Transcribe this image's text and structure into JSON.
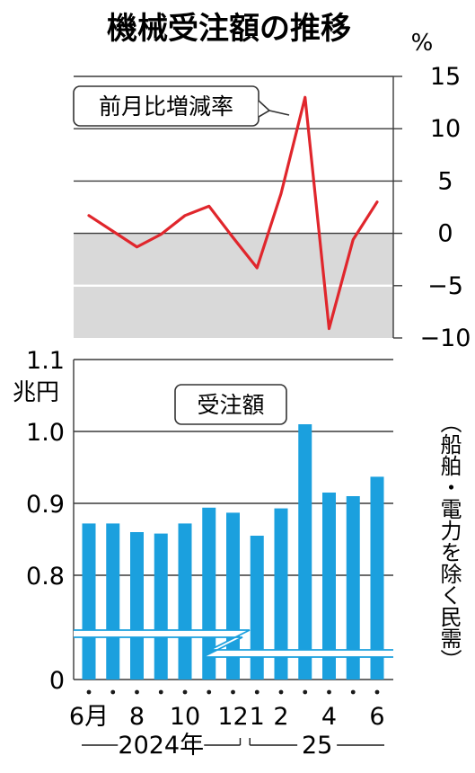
{
  "title": "機械受注額の推移",
  "chart_data": [
    {
      "type": "line",
      "label": "前月比増減率",
      "yunit": "%",
      "ylim": [
        -10,
        15
      ],
      "yticks": [
        15,
        10,
        5,
        0,
        -5,
        -10
      ],
      "ytick_labels": [
        "15",
        "10",
        "5",
        "0",
        "−5",
        "−10"
      ],
      "negative_region_shaded": true,
      "line_color": "#e0262c",
      "shade_color": "#d9d9d9",
      "x": [
        "2024-06",
        "2024-07",
        "2024-08",
        "2024-09",
        "2024-10",
        "2024-11",
        "2024-12",
        "2025-01",
        "2025-02",
        "2025-03",
        "2025-04",
        "2025-05",
        "2025-06"
      ],
      "values": [
        1.7,
        0.2,
        -1.3,
        -0.1,
        1.7,
        2.6,
        -0.4,
        -3.3,
        3.8,
        13.0,
        -9.1,
        -0.6,
        3.0
      ]
    },
    {
      "type": "bar",
      "label": "受注額",
      "yunit": "兆円",
      "ylim": [
        0,
        1.1
      ],
      "yticks": [
        1.1,
        1.0,
        0.9,
        0.8,
        0
      ],
      "ytick_labels": [
        "1.1",
        "1.0",
        "0.9",
        "0.8",
        "0"
      ],
      "axis_break": true,
      "bar_color": "#1ba0de",
      "categories": [
        "2024-06",
        "2024-07",
        "2024-08",
        "2024-09",
        "2024-10",
        "2024-11",
        "2024-12",
        "2025-01",
        "2025-02",
        "2025-03",
        "2025-04",
        "2025-05",
        "2025-06"
      ],
      "values": [
        0.872,
        0.872,
        0.86,
        0.858,
        0.872,
        0.894,
        0.887,
        0.855,
        0.893,
        1.01,
        0.915,
        0.91,
        0.937
      ],
      "note": "（船舶・電力を除く民需）"
    }
  ],
  "xaxis": {
    "tick_labels": [
      "6月",
      "",
      "8",
      "",
      "10",
      "",
      "12",
      "1",
      "2",
      "",
      "4",
      "",
      "6"
    ],
    "year_groups": [
      {
        "label": "2024年",
        "start": 0,
        "end": 6
      },
      {
        "label": "25",
        "start": 7,
        "end": 12
      }
    ]
  }
}
